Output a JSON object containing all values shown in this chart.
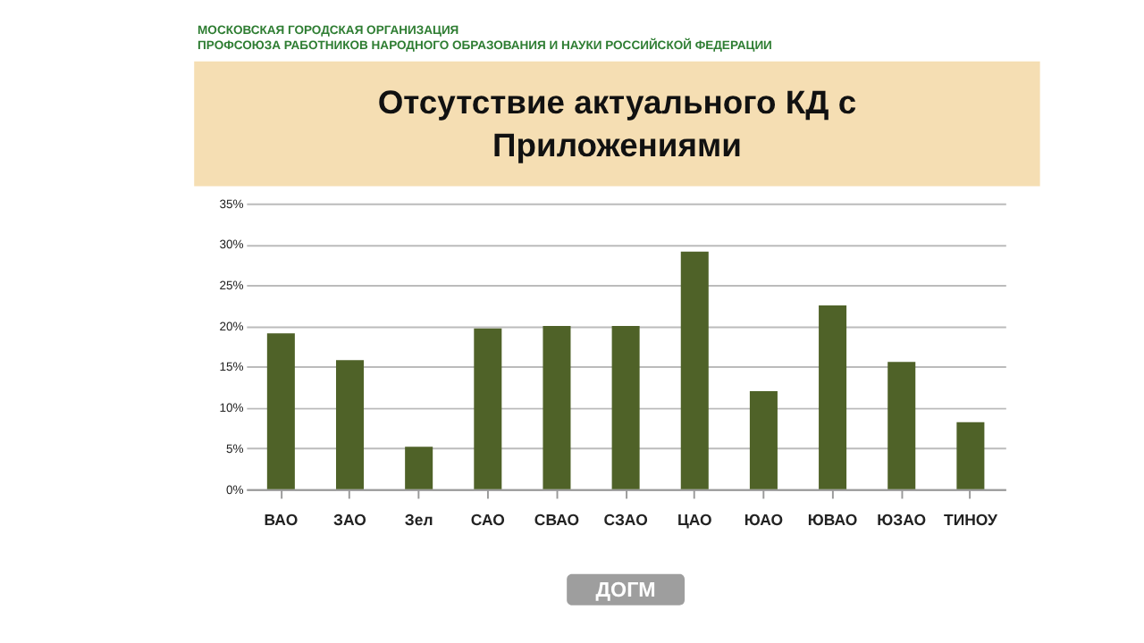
{
  "chart_data": {
    "type": "bar",
    "title": [
      "Отсутствие  актуального КД с",
      "Приложениями"
    ],
    "categories": [
      "ВАО",
      "ЗАО",
      "Зел",
      "САО",
      "СВАО",
      "СЗАО",
      "ЦАО",
      "ЮАО",
      "ЮВАО",
      "ЮЗАО",
      "ТИНОУ"
    ],
    "values": [
      19.1,
      15.8,
      5.2,
      19.7,
      20,
      20,
      29.1,
      12.0,
      22.5,
      15.6,
      8.2
    ],
    "color": "#4f6228",
    "ylim": [
      0,
      35
    ],
    "yticks": [
      {
        "value": 0,
        "label": "0%"
      },
      {
        "value": 5,
        "label": "5%"
      },
      {
        "value": 10,
        "label": "10%"
      },
      {
        "value": 15,
        "label": "15%"
      },
      {
        "value": 20,
        "label": "20%"
      },
      {
        "value": 25,
        "label": "25%"
      },
      {
        "value": 30,
        "label": "30%"
      },
      {
        "value": 35,
        "label": "35%"
      }
    ],
    "grid": "y",
    "annotations": [
      "МОСКОВСКАЯ ГОРОДСКАЯ ОРГАНИЗАЦИЯ",
      "ПРОФСОЮЗА РАБОТНИКОВ НАРОДНОГО ОБРАЗОВАНИЯ И НАУКИ РОССИЙСКОЙ ФЕДЕРАЦИИ",
      "ДОГМ"
    ]
  }
}
